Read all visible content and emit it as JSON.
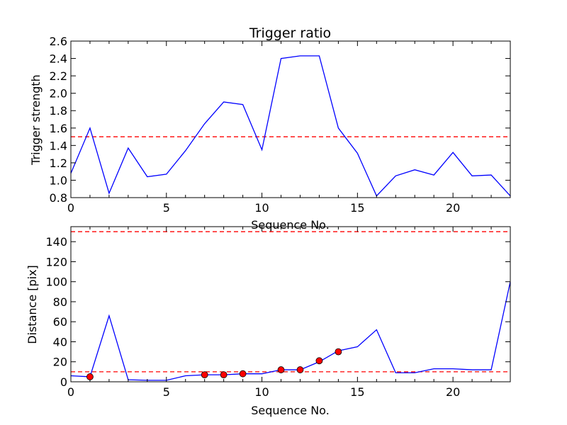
{
  "chart_data": [
    {
      "type": "line",
      "title": "Trigger ratio",
      "xlabel": "Sequence No.",
      "ylabel": "Trigger strength",
      "xlim": [
        0,
        23
      ],
      "ylim": [
        0.8,
        2.6
      ],
      "xticks": [
        0,
        5,
        10,
        15,
        20
      ],
      "yticks": [
        0.8,
        1.0,
        1.2,
        1.4,
        1.6,
        1.8,
        2.0,
        2.2,
        2.4,
        2.6
      ],
      "ytick_labels": [
        "0.8",
        "1.0",
        "1.2",
        "1.4",
        "1.6",
        "1.8",
        "2.0",
        "2.2",
        "2.4",
        "2.6"
      ],
      "grid": false,
      "series": [
        {
          "x": [
            0,
            1,
            2,
            3,
            4,
            5,
            6,
            7,
            8,
            9,
            10,
            11,
            12,
            13,
            14,
            15,
            16,
            17,
            18,
            19,
            20,
            21,
            22,
            23
          ],
          "values": [
            1.08,
            1.6,
            0.85,
            1.37,
            1.04,
            1.07,
            1.34,
            1.65,
            1.9,
            1.87,
            1.35,
            2.4,
            2.43,
            2.43,
            1.6,
            1.31,
            0.82,
            1.05,
            1.12,
            1.06,
            1.32,
            1.05,
            1.06,
            0.82
          ],
          "color": "#0000ff"
        }
      ],
      "reference_lines": [
        {
          "y": 1.5,
          "color": "#ff0000",
          "style": "dashed"
        }
      ]
    },
    {
      "type": "line",
      "xlabel": "Sequence No.",
      "ylabel": "Distance [pix]",
      "xlim": [
        0,
        23
      ],
      "ylim": [
        0,
        155
      ],
      "xticks": [
        0,
        5,
        10,
        15,
        20
      ],
      "yticks": [
        0,
        20,
        40,
        60,
        80,
        100,
        120,
        140
      ],
      "ytick_labels": [
        "0",
        "20",
        "40",
        "60",
        "80",
        "100",
        "120",
        "140"
      ],
      "grid": false,
      "series": [
        {
          "x": [
            0,
            1,
            2,
            3,
            4,
            5,
            6,
            7,
            8,
            9,
            10,
            11,
            12,
            13,
            14,
            15,
            16,
            17,
            18,
            19,
            20,
            21,
            22,
            23
          ],
          "values": [
            6,
            5,
            66,
            2,
            1.5,
            1.5,
            6,
            7,
            7,
            8,
            8,
            12,
            12,
            20,
            31,
            35,
            52,
            9,
            9,
            13,
            13,
            12,
            12,
            100
          ],
          "color": "#0000ff"
        }
      ],
      "markers": {
        "x": [
          1,
          7,
          8,
          9,
          11,
          12,
          13,
          14
        ],
        "values": [
          5,
          7,
          7,
          8,
          12,
          12,
          21,
          30
        ],
        "color": "#ff0000"
      },
      "reference_lines": [
        {
          "y": 10,
          "color": "#ff0000",
          "style": "dashed"
        },
        {
          "y": 150,
          "color": "#ff0000",
          "style": "dashed"
        }
      ]
    }
  ]
}
